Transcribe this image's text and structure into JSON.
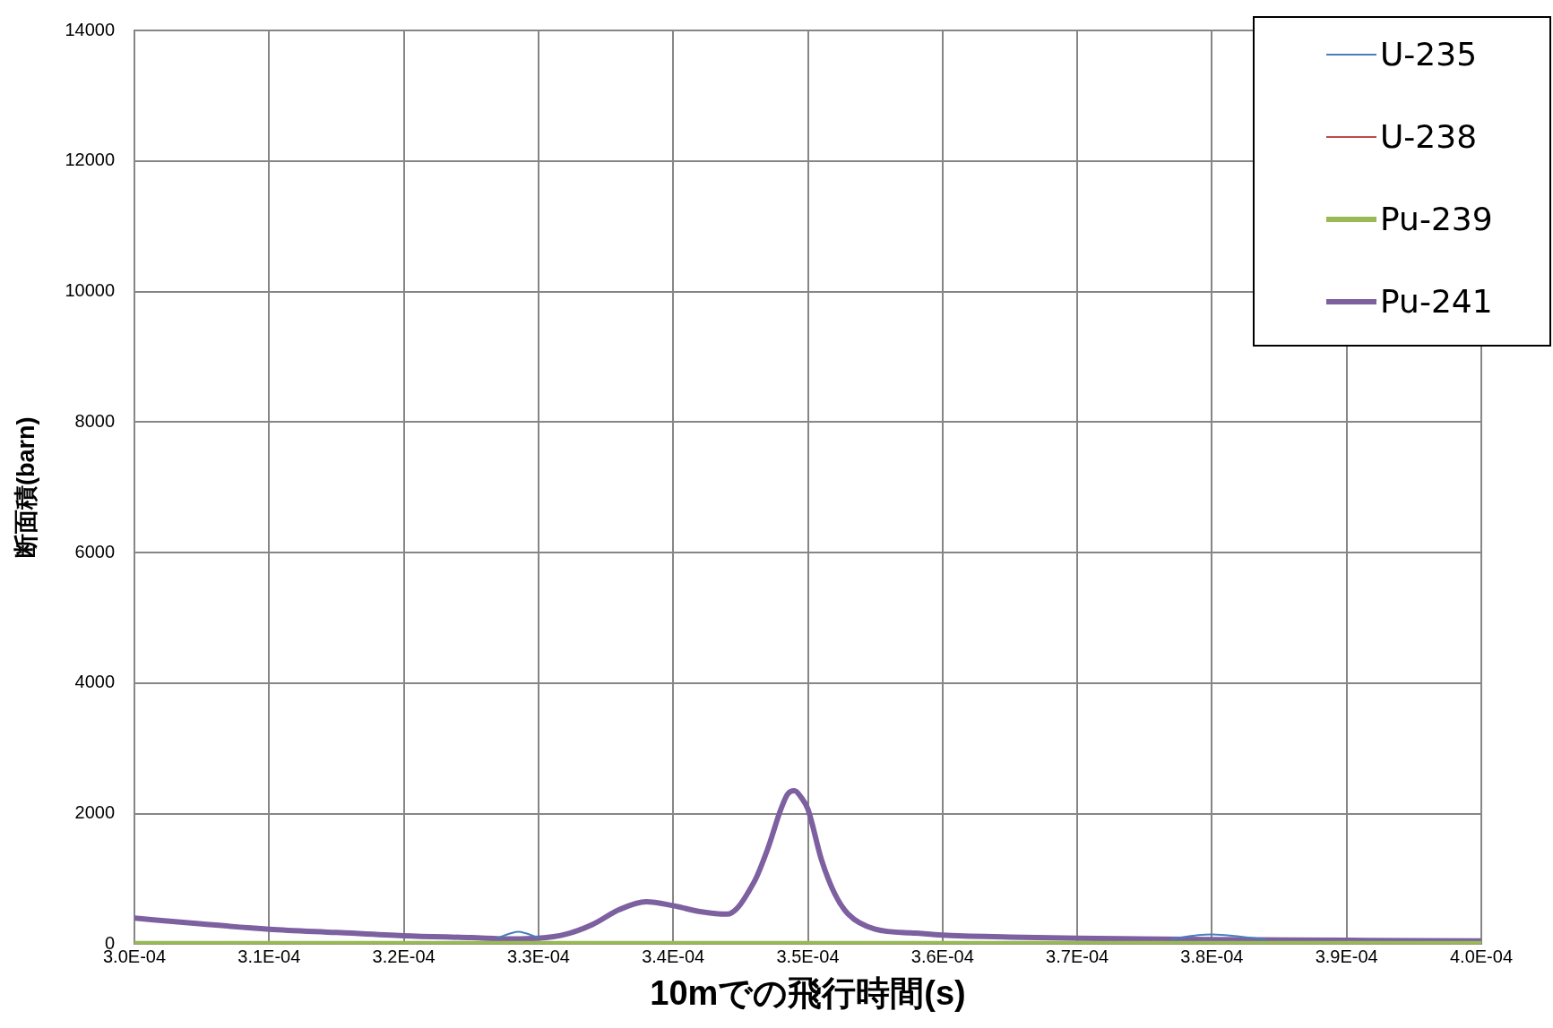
{
  "chart_data": {
    "type": "line",
    "xlabel": "10mでの飛行時間(s)",
    "ylabel": "断面積(barn)",
    "xlim": [
      0.0003,
      0.0004
    ],
    "xticks": [
      {
        "value": 0.0003,
        "label": "3.0E-04"
      },
      {
        "value": 0.00031,
        "label": "3.1E-04"
      },
      {
        "value": 0.00032,
        "label": "3.2E-04"
      },
      {
        "value": 0.00033,
        "label": "3.3E-04"
      },
      {
        "value": 0.00034,
        "label": "3.4E-04"
      },
      {
        "value": 0.00035,
        "label": "3.5E-04"
      },
      {
        "value": 0.00036,
        "label": "3.6E-04"
      },
      {
        "value": 0.00037,
        "label": "3.7E-04"
      },
      {
        "value": 0.00038,
        "label": "3.8E-04"
      },
      {
        "value": 0.00039,
        "label": "3.9E-04"
      },
      {
        "value": 0.0004,
        "label": "4.0E-04"
      }
    ],
    "ylim": [
      0,
      14000
    ],
    "yticks": [
      0,
      2000,
      4000,
      6000,
      8000,
      10000,
      12000,
      14000
    ],
    "grid": true,
    "legend": "top right",
    "marker": "none",
    "line_style": "solid",
    "series": [
      {
        "name": "U-235",
        "color": "#4a7ebb",
        "x": [
          0.000327,
          0.000328,
          0.0003285,
          0.000329,
          0.00033,
          null,
          0.000377,
          0.000379,
          0.00038,
          0.000382,
          0.000384
        ],
        "values": [
          100,
          170,
          190,
          170,
          100,
          null,
          80,
          140,
          150,
          120,
          70
        ]
      },
      {
        "name": "U-238",
        "color": "#be4b48"
      },
      {
        "name": "Pu-239",
        "color": "#98b954",
        "x": [
          0.0003,
          0.00031,
          0.00032,
          0.00033,
          0.00034,
          0.00035,
          0.00036,
          0.00037,
          0.00038,
          0.00039,
          0.0004
        ],
        "values": [
          10,
          10,
          10,
          10,
          10,
          10,
          10,
          10,
          10,
          10,
          10
        ]
      },
      {
        "name": "Pu-241",
        "color": "#7d60a0",
        "x": [
          0.0003,
          0.000305,
          0.00031,
          0.000315,
          0.00032,
          0.000325,
          0.000328,
          0.00033,
          0.000332,
          0.000334,
          0.000336,
          0.000338,
          0.00034,
          0.000342,
          0.000344,
          0.000346,
          0.000347,
          0.000348,
          0.0003485,
          0.000349,
          0.0003495,
          0.00035,
          0.000351,
          0.000352,
          0.000353,
          0.000355,
          0.000358,
          0.00036,
          0.000365,
          0.00037,
          0.00038,
          0.00039,
          0.0004
        ],
        "values": [
          400,
          310,
          230,
          180,
          130,
          100,
          80,
          90,
          150,
          300,
          530,
          650,
          590,
          500,
          460,
          950,
          1450,
          2070,
          2300,
          2350,
          2250,
          2070,
          1300,
          770,
          460,
          230,
          170,
          140,
          110,
          90,
          70,
          60,
          50
        ]
      }
    ]
  }
}
